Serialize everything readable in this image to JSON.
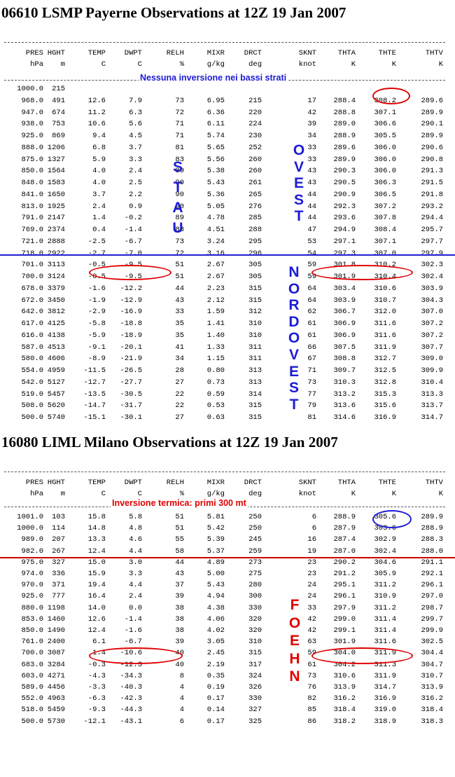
{
  "columns": [
    {
      "name": "PRES",
      "unit": "hPa"
    },
    {
      "name": "HGHT",
      "unit": "m"
    },
    {
      "name": "TEMP",
      "unit": "C"
    },
    {
      "name": "DWPT",
      "unit": "C"
    },
    {
      "name": "RELH",
      "unit": "%"
    },
    {
      "name": "MIXR",
      "unit": "g/kg"
    },
    {
      "name": "DRCT",
      "unit": "deg"
    },
    {
      "name": "SKNT",
      "unit": "knot"
    },
    {
      "name": "THTA",
      "unit": "K"
    },
    {
      "name": "THTE",
      "unit": "K"
    },
    {
      "name": "THTV",
      "unit": "K"
    }
  ],
  "colors": {
    "annotation_blue": "#1c1cd6",
    "annotation_red": "#e00000",
    "divider_blue": "#2020d0",
    "divider_red": "#d00000"
  },
  "tables": [
    {
      "title": "06610 LSMP Payerne Observations at 12Z 19 Jan 2007",
      "note": "Nessuna inversione nei bassi strati",
      "rows": [
        [
          "1000.0",
          "215",
          "",
          "",
          "",
          "",
          "",
          "",
          "",
          "",
          ""
        ],
        [
          "968.0",
          "491",
          "12.6",
          "7.9",
          "73",
          "6.95",
          "215",
          "17",
          "288.4",
          "308.2",
          "289.6"
        ],
        [
          "947.0",
          "674",
          "11.2",
          "6.3",
          "72",
          "6.36",
          "220",
          "42",
          "288.8",
          "307.1",
          "289.9"
        ],
        [
          "938.0",
          "753",
          "10.6",
          "5.6",
          "71",
          "6.11",
          "224",
          "39",
          "289.0",
          "306.6",
          "290.1"
        ],
        [
          "925.0",
          "869",
          "9.4",
          "4.5",
          "71",
          "5.74",
          "230",
          "34",
          "288.9",
          "305.5",
          "289.9"
        ],
        [
          "888.0",
          "1206",
          "6.8",
          "3.7",
          "81",
          "5.65",
          "252",
          "33",
          "289.6",
          "306.0",
          "290.6"
        ],
        [
          "875.0",
          "1327",
          "5.9",
          "3.3",
          "83",
          "5.56",
          "260",
          "33",
          "289.9",
          "306.0",
          "290.8"
        ],
        [
          "850.0",
          "1564",
          "4.0",
          "2.4",
          "89",
          "5.38",
          "260",
          "43",
          "290.3",
          "306.0",
          "291.3"
        ],
        [
          "848.0",
          "1583",
          "4.0",
          "2.5",
          "90",
          "5.43",
          "261",
          "43",
          "290.5",
          "306.3",
          "291.5"
        ],
        [
          "841.0",
          "1650",
          "3.7",
          "2.2",
          "90",
          "5.36",
          "265",
          "44",
          "290.9",
          "306.5",
          "291.8"
        ],
        [
          "813.0",
          "1925",
          "2.4",
          "0.9",
          "90",
          "5.05",
          "276",
          "44",
          "292.3",
          "307.2",
          "293.2"
        ],
        [
          "791.0",
          "2147",
          "1.4",
          "-0.2",
          "89",
          "4.78",
          "285",
          "44",
          "293.6",
          "307.8",
          "294.4"
        ],
        [
          "769.0",
          "2374",
          "0.4",
          "-1.4",
          "88",
          "4.51",
          "288",
          "47",
          "294.9",
          "308.4",
          "295.7"
        ],
        [
          "721.0",
          "2888",
          "-2.5",
          "-6.7",
          "73",
          "3.24",
          "295",
          "53",
          "297.1",
          "307.1",
          "297.7"
        ],
        [
          "718.0",
          "2922",
          "-2.7",
          "-7.0",
          "72",
          "3.16",
          "296",
          "54",
          "297.3",
          "307.0",
          "297.9"
        ],
        [
          "701.0",
          "3113",
          "-0.5",
          "-9.5",
          "51",
          "2.67",
          "305",
          "59",
          "301.8",
          "310.2",
          "302.3"
        ],
        [
          "700.0",
          "3124",
          "-0.5",
          "-9.5",
          "51",
          "2.67",
          "305",
          "59",
          "301.9",
          "310.4",
          "302.4"
        ],
        [
          "678.0",
          "3379",
          "-1.6",
          "-12.2",
          "44",
          "2.23",
          "315",
          "64",
          "303.4",
          "310.6",
          "303.9"
        ],
        [
          "672.0",
          "3450",
          "-1.9",
          "-12.9",
          "43",
          "2.12",
          "315",
          "64",
          "303.9",
          "310.7",
          "304.3"
        ],
        [
          "642.0",
          "3812",
          "-2.9",
          "-16.9",
          "33",
          "1.59",
          "312",
          "62",
          "306.7",
          "312.0",
          "307.0"
        ],
        [
          "617.0",
          "4125",
          "-5.8",
          "-18.8",
          "35",
          "1.41",
          "310",
          "61",
          "306.9",
          "311.6",
          "307.2"
        ],
        [
          "616.0",
          "4138",
          "-5.9",
          "-18.9",
          "35",
          "1.40",
          "310",
          "61",
          "306.9",
          "311.6",
          "307.2"
        ],
        [
          "587.0",
          "4513",
          "-9.1",
          "-20.1",
          "41",
          "1.33",
          "311",
          "66",
          "307.5",
          "311.9",
          "307.7"
        ],
        [
          "580.0",
          "4606",
          "-8.9",
          "-21.9",
          "34",
          "1.15",
          "311",
          "67",
          "308.8",
          "312.7",
          "309.0"
        ],
        [
          "554.0",
          "4959",
          "-11.5",
          "-26.5",
          "28",
          "0.80",
          "313",
          "71",
          "309.7",
          "312.5",
          "309.9"
        ],
        [
          "542.0",
          "5127",
          "-12.7",
          "-27.7",
          "27",
          "0.73",
          "313",
          "73",
          "310.3",
          "312.8",
          "310.4"
        ],
        [
          "519.0",
          "5457",
          "-13.5",
          "-30.5",
          "22",
          "0.59",
          "314",
          "77",
          "313.2",
          "315.3",
          "313.3"
        ],
        [
          "508.0",
          "5620",
          "-14.7",
          "-31.7",
          "22",
          "0.53",
          "315",
          "79",
          "313.6",
          "315.6",
          "313.7"
        ],
        [
          "500.0",
          "5740",
          "-15.1",
          "-30.1",
          "27",
          "0.63",
          "315",
          "81",
          "314.6",
          "316.9",
          "314.7"
        ]
      ],
      "vertical_labels": [
        {
          "name": "stau",
          "letters": [
            "S",
            "T",
            "A",
            "U"
          ]
        },
        {
          "name": "ovest",
          "letters": [
            "O",
            "V",
            "E",
            "S",
            "T"
          ]
        },
        {
          "name": "nordovest",
          "letters": [
            "N",
            "O",
            "R",
            "D",
            "O",
            "V",
            "E",
            "S",
            "T"
          ]
        }
      ]
    },
    {
      "title": "16080 LIML Milano Observations at 12Z 19 Jan 2007",
      "note": "Inversione termica: primi 300 mt",
      "rows": [
        [
          "1001.0",
          "103",
          "15.8",
          "5.8",
          "51",
          "5.81",
          "250",
          "6",
          "288.9",
          "305.6",
          "289.9"
        ],
        [
          "1000.0",
          "114",
          "14.8",
          "4.8",
          "51",
          "5.42",
          "250",
          "6",
          "287.9",
          "303.6",
          "288.9"
        ],
        [
          "989.0",
          "207",
          "13.3",
          "4.6",
          "55",
          "5.39",
          "245",
          "16",
          "287.4",
          "302.9",
          "288.3"
        ],
        [
          "982.0",
          "267",
          "12.4",
          "4.4",
          "58",
          "5.37",
          "259",
          "19",
          "287.0",
          "302.4",
          "288.0"
        ],
        [
          "975.0",
          "327",
          "15.0",
          "3.0",
          "44",
          "4.89",
          "273",
          "23",
          "290.2",
          "304.6",
          "291.1"
        ],
        [
          "974.0",
          "336",
          "15.9",
          "3.3",
          "43",
          "5.00",
          "275",
          "23",
          "291.2",
          "305.9",
          "292.1"
        ],
        [
          "970.0",
          "371",
          "19.4",
          "4.4",
          "37",
          "5.43",
          "280",
          "24",
          "295.1",
          "311.2",
          "296.1"
        ],
        [
          "925.0",
          "777",
          "16.4",
          "2.4",
          "39",
          "4.94",
          "300",
          "24",
          "296.1",
          "310.9",
          "297.0"
        ],
        [
          "880.0",
          "1198",
          "14.0",
          "0.0",
          "38",
          "4.38",
          "330",
          "33",
          "297.9",
          "311.2",
          "298.7"
        ],
        [
          "853.0",
          "1460",
          "12.6",
          "-1.4",
          "38",
          "4.06",
          "320",
          "42",
          "299.0",
          "311.4",
          "299.7"
        ],
        [
          "850.0",
          "1490",
          "12.4",
          "-1.6",
          "38",
          "4.02",
          "320",
          "42",
          "299.1",
          "311.4",
          "299.9"
        ],
        [
          "761.0",
          "2400",
          "6.1",
          "-6.7",
          "39",
          "3.05",
          "310",
          "63",
          "301.9",
          "311.6",
          "302.5"
        ],
        [
          "700.0",
          "3087",
          "1.4",
          "-10.6",
          "40",
          "2.45",
          "315",
          "59",
          "304.0",
          "311.9",
          "304.4"
        ],
        [
          "683.0",
          "3284",
          "-0.3",
          "-12.3",
          "40",
          "2.19",
          "317",
          "61",
          "304.2",
          "311.3",
          "304.7"
        ],
        [
          "603.0",
          "4271",
          "-4.3",
          "-34.3",
          "8",
          "0.35",
          "324",
          "73",
          "310.6",
          "311.9",
          "310.7"
        ],
        [
          "589.0",
          "4456",
          "-3.3",
          "-40.3",
          "4",
          "0.19",
          "326",
          "76",
          "313.9",
          "314.7",
          "313.9"
        ],
        [
          "552.0",
          "4963",
          "-6.3",
          "-42.3",
          "4",
          "0.17",
          "330",
          "82",
          "316.2",
          "316.9",
          "316.2"
        ],
        [
          "518.0",
          "5459",
          "-9.3",
          "-44.3",
          "4",
          "0.14",
          "327",
          "85",
          "318.4",
          "319.0",
          "318.4"
        ],
        [
          "500.0",
          "5730",
          "-12.1",
          "-43.1",
          "6",
          "0.17",
          "325",
          "86",
          "318.2",
          "318.9",
          "318.3"
        ]
      ],
      "vertical_labels": [
        {
          "name": "foehn",
          "letters": [
            "F",
            "O",
            "E",
            "H",
            "N"
          ]
        }
      ]
    }
  ]
}
